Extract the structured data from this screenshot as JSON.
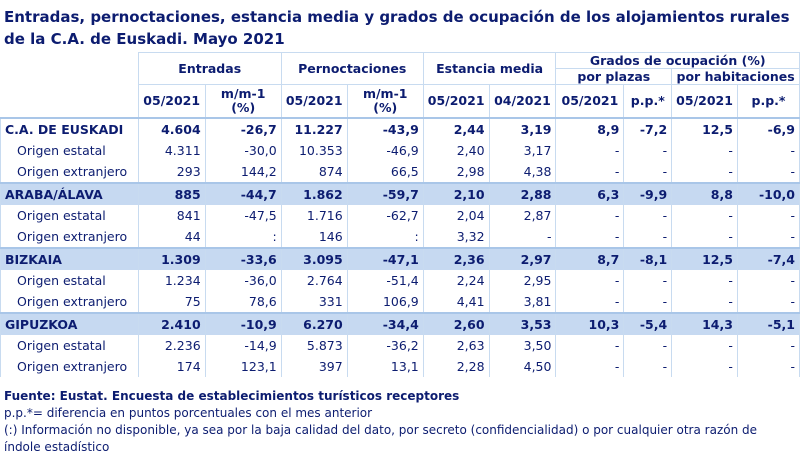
{
  "title": "Entradas, pernoctaciones, estancia media y grados de ocupación de los alojamientos rurales de la C.A. de Euskadi.  Mayo 2021",
  "headers": {
    "entradas": "Entradas",
    "pernoctaciones": "Pernoctaciones",
    "estancia": "Estancia media",
    "grados": "Grados de ocupación (%)",
    "plazas": "por plazas",
    "habitaciones": "por habitaciones",
    "c05": "05/2021",
    "c04": "04/2021",
    "mm": "m/m-1",
    "pct": "(%)",
    "pp": "p.p.*"
  },
  "rows": [
    {
      "label": "C.A. DE EUSKADI",
      "main": true,
      "hl": false,
      "v": [
        "4.604",
        "-26,7",
        "11.227",
        "-43,9",
        "2,44",
        "3,19",
        "8,9",
        "-7,2",
        "12,5",
        "-6,9"
      ]
    },
    {
      "label": "Origen estatal",
      "v": [
        "4.311",
        "-30,0",
        "10.353",
        "-46,9",
        "2,40",
        "3,17",
        "-",
        "-",
        "-",
        "-"
      ]
    },
    {
      "label": "Origen extranjero",
      "v": [
        "293",
        "144,2",
        "874",
        "66,5",
        "2,98",
        "4,38",
        "-",
        "-",
        "-",
        "-"
      ]
    },
    {
      "label": "ARABA/ÁLAVA",
      "main": true,
      "hl": true,
      "v": [
        "885",
        "-44,7",
        "1.862",
        "-59,7",
        "2,10",
        "2,88",
        "6,3",
        "-9,9",
        "8,8",
        "-10,0"
      ]
    },
    {
      "label": "Origen estatal",
      "v": [
        "841",
        "-47,5",
        "1.716",
        "-62,7",
        "2,04",
        "2,87",
        "-",
        "-",
        "-",
        "-"
      ]
    },
    {
      "label": "Origen extranjero",
      "v": [
        "44",
        ":",
        "146",
        ":",
        "3,32",
        "-",
        "-",
        "-",
        "-",
        "-"
      ]
    },
    {
      "label": "BIZKAIA",
      "main": true,
      "hl": true,
      "v": [
        "1.309",
        "-33,6",
        "3.095",
        "-47,1",
        "2,36",
        "2,97",
        "8,7",
        "-8,1",
        "12,5",
        "-7,4"
      ]
    },
    {
      "label": "Origen estatal",
      "v": [
        "1.234",
        "-36,0",
        "2.764",
        "-51,4",
        "2,24",
        "2,95",
        "-",
        "-",
        "-",
        "-"
      ]
    },
    {
      "label": "Origen extranjero",
      "v": [
        "75",
        "78,6",
        "331",
        "106,9",
        "4,41",
        "3,81",
        "-",
        "-",
        "-",
        "-"
      ]
    },
    {
      "label": "GIPUZKOA",
      "main": true,
      "hl": true,
      "v": [
        "2.410",
        "-10,9",
        "6.270",
        "-34,4",
        "2,60",
        "3,53",
        "10,3",
        "-5,4",
        "14,3",
        "-5,1"
      ]
    },
    {
      "label": "Origen estatal",
      "v": [
        "2.236",
        "-14,9",
        "5.873",
        "-36,2",
        "2,63",
        "3,50",
        "-",
        "-",
        "-",
        "-"
      ]
    },
    {
      "label": "Origen extranjero",
      "v": [
        "174",
        "123,1",
        "397",
        "13,1",
        "2,28",
        "4,50",
        "-",
        "-",
        "-",
        "-"
      ]
    }
  ],
  "footer": {
    "source": "Fuente: Eustat. Encuesta de establecimientos turísticos receptores",
    "note1": "p.p.*= diferencia en puntos porcentuales con el mes anterior",
    "note2": "(:) Información no disponible, ya sea por la baja calidad del dato, por secreto (confidencialidad) o por cualquier otra razón de índole estadístico"
  }
}
